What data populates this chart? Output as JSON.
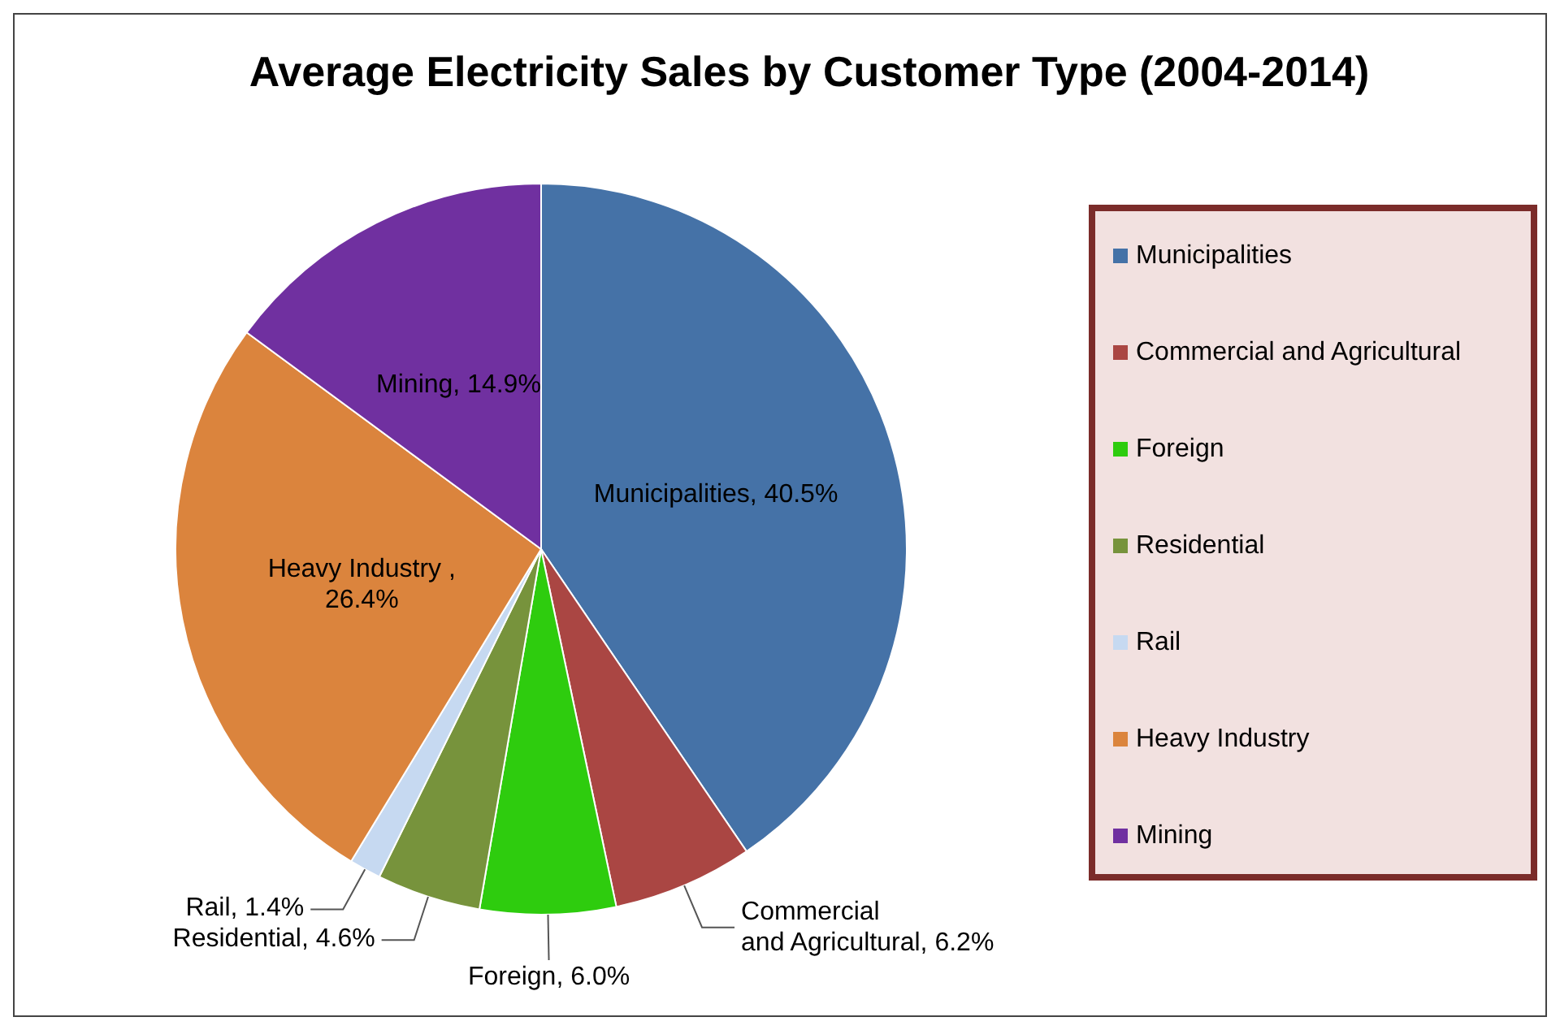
{
  "chart_data": {
    "type": "pie",
    "title": "Average Electricity Sales by Customer Type (2004-2014)",
    "categories": [
      "Municipalities",
      "Commercial and Agricultural",
      "Foreign",
      "Residential",
      "Rail",
      "Heavy Industry",
      "Mining"
    ],
    "values": [
      40.5,
      6.2,
      6.0,
      4.6,
      1.4,
      26.4,
      14.9
    ],
    "colors": [
      "#4572a7",
      "#aa4643",
      "#2ecc0e",
      "#77933c",
      "#c6d9f1",
      "#db843d",
      "#7030a0"
    ],
    "value_labels": [
      "Municipalities, 40.5%",
      "Commercial and Agricultural, 6.2%",
      "Foreign, 6.0%",
      "Residential, 4.6%",
      "Rail, 1.4%",
      "Heavy Industry , 26.4%",
      "Mining, 14.9%"
    ],
    "legend": "right"
  }
}
